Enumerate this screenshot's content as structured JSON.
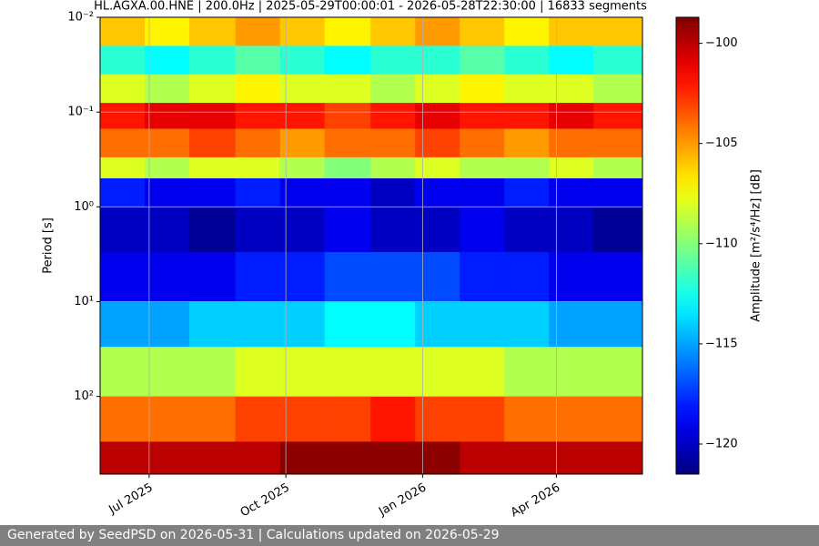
{
  "chart_data": {
    "type": "heatmap",
    "title": "HL.AGXA.00.HNE | 200.0Hz | 2025-05-29T00:00:01 - 2026-05-28T22:30:00 | 16833 segments",
    "ylabel": "Period [s]",
    "colorbar_label": "Amplitude [m²/s⁴/Hz] [dB]",
    "footer": "Generated by SeedPSD on 2026-05-31 | Calculations updated on 2026-05-29",
    "colormap": "jet",
    "ylog": true,
    "grid": true,
    "xlim": [
      "2025-05-29T00:00:01",
      "2026-05-28T22:30:00"
    ],
    "xticks": [
      {
        "value": "2025-07-01",
        "label": "Jul 2025"
      },
      {
        "value": "2025-10-01",
        "label": "Oct 2025"
      },
      {
        "value": "2026-01-01",
        "label": "Jan 2026"
      },
      {
        "value": "2026-04-01",
        "label": "Apr 2026"
      }
    ],
    "ylim": [
      0.01,
      660
    ],
    "yticks": [
      {
        "value": 0.01,
        "label": "10⁻²"
      },
      {
        "value": 0.1,
        "label": "10⁻¹"
      },
      {
        "value": 1,
        "label": "10⁰"
      },
      {
        "value": 10,
        "label": "10¹"
      },
      {
        "value": 100,
        "label": "10²"
      }
    ],
    "clim": [
      -121.5,
      -98.7
    ],
    "cticks": [
      {
        "value": -100,
        "label": "−100"
      },
      {
        "value": -105,
        "label": "−105"
      },
      {
        "value": -110,
        "label": "−110"
      },
      {
        "value": -115,
        "label": "−115"
      },
      {
        "value": -120,
        "label": "−120"
      }
    ],
    "x_edges": [
      "2025-05-29T00:00:01",
      "2025-06-28",
      "2025-07-28",
      "2025-08-28",
      "2025-09-27",
      "2025-10-27",
      "2025-11-27",
      "2025-12-27",
      "2026-01-26",
      "2026-02-25",
      "2026-03-27",
      "2026-04-26",
      "2026-05-28T22:30:00"
    ],
    "y_edges": [
      0.01,
      0.02,
      0.04,
      0.08,
      0.15,
      0.3,
      0.5,
      1,
      3,
      10,
      30,
      100,
      300,
      660
    ],
    "values": [
      [
        -106,
        -107,
        -106,
        -105,
        -106,
        -107,
        -106,
        -105,
        -106,
        -107,
        -106,
        -106
      ],
      [
        -112,
        -113,
        -112,
        -111,
        -112,
        -113,
        -112,
        -112,
        -111,
        -112,
        -113,
        -112
      ],
      [
        -108,
        -109,
        -108,
        -107,
        -108,
        -108,
        -109,
        -108,
        -107,
        -108,
        -108,
        -109
      ],
      [
        -102,
        -101,
        -101,
        -102,
        -102,
        -103,
        -102,
        -101,
        -102,
        -102,
        -101,
        -102
      ],
      [
        -104,
        -104,
        -103,
        -104,
        -105,
        -104,
        -104,
        -103,
        -104,
        -105,
        -104,
        -104
      ],
      [
        -108,
        -109,
        -108,
        -108,
        -109,
        -110,
        -109,
        -108,
        -109,
        -109,
        -108,
        -109
      ],
      [
        -118,
        -119,
        -119,
        -118,
        -119,
        -119,
        -120,
        -119,
        -119,
        -118,
        -119,
        -119
      ],
      [
        -120,
        -120,
        -121,
        -120,
        -120,
        -119,
        -120,
        -120,
        -119,
        -120,
        -120,
        -121
      ],
      [
        -119,
        -119,
        -119,
        -118,
        -118,
        -117,
        -117,
        -117,
        -118,
        -118,
        -119,
        -119
      ],
      [
        -115,
        -115,
        -114,
        -114,
        -114,
        -113,
        -113,
        -114,
        -114,
        -114,
        -115,
        -115
      ],
      [
        -109,
        -109,
        -109,
        -108,
        -108,
        -108,
        -108,
        -108,
        -108,
        -109,
        -109,
        -109
      ],
      [
        -104,
        -104,
        -104,
        -103,
        -103,
        -103,
        -102,
        -103,
        -103,
        -104,
        -104,
        -104
      ],
      [
        -100,
        -100,
        -100,
        -100,
        -99,
        -99,
        -99,
        -99,
        -100,
        -100,
        -100,
        -100
      ]
    ]
  }
}
